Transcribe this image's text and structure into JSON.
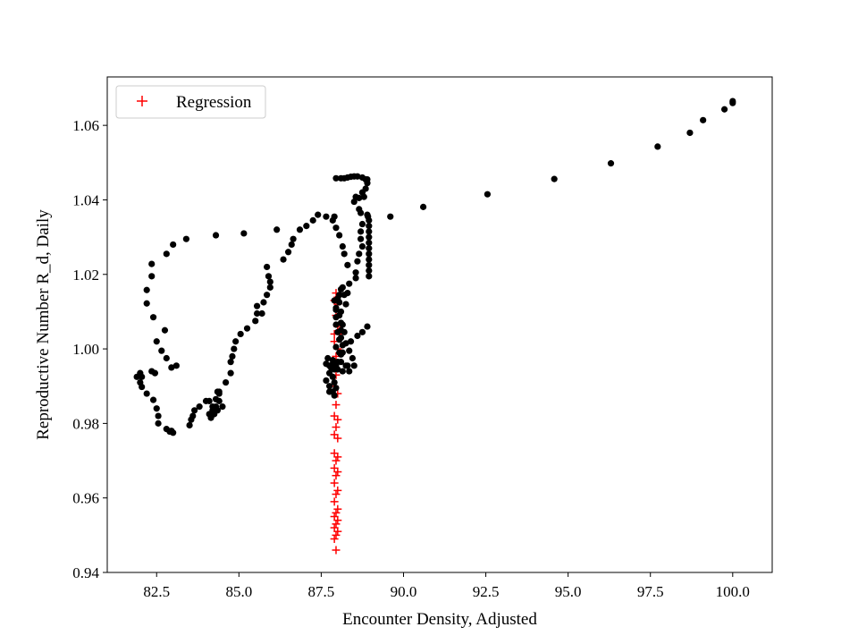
{
  "chart_data": {
    "type": "scatter",
    "title": "",
    "xlabel": "Encounter Density, Adjusted",
    "ylabel": "Reproductive Number R_d, Daily",
    "xlim": [
      81.0,
      101.2
    ],
    "ylim": [
      0.94,
      1.073
    ],
    "xticks": [
      "82.5",
      "85.0",
      "87.5",
      "90.0",
      "92.5",
      "95.0",
      "97.5",
      "100.0"
    ],
    "yticks": [
      "0.94",
      "0.96",
      "0.98",
      "1.00",
      "1.02",
      "1.04",
      "1.06"
    ],
    "grid": false,
    "legend_position": "top-left",
    "legend_entries": [
      "Regression"
    ],
    "series": [
      {
        "name": "Regression",
        "marker": "+",
        "color": "#ff0000",
        "points": [
          [
            87.95,
            1.015
          ],
          [
            87.9,
            1.013
          ],
          [
            88.0,
            1.012
          ],
          [
            87.95,
            1.009
          ],
          [
            88.0,
            1.006
          ],
          [
            87.9,
            1.004
          ],
          [
            88.05,
            1.004
          ],
          [
            87.9,
            1.002
          ],
          [
            88.0,
            1.0
          ],
          [
            87.95,
            0.998
          ],
          [
            88.0,
            0.996
          ],
          [
            87.95,
            0.993
          ],
          [
            87.9,
            0.99
          ],
          [
            88.0,
            0.988
          ],
          [
            87.95,
            0.985
          ],
          [
            87.9,
            0.982
          ],
          [
            88.0,
            0.981
          ],
          [
            87.95,
            0.979
          ],
          [
            87.9,
            0.977
          ],
          [
            88.0,
            0.976
          ],
          [
            87.9,
            0.972
          ],
          [
            88.0,
            0.971
          ],
          [
            87.95,
            0.97
          ],
          [
            87.9,
            0.968
          ],
          [
            88.0,
            0.967
          ],
          [
            87.95,
            0.966
          ],
          [
            87.9,
            0.964
          ],
          [
            88.0,
            0.962
          ],
          [
            87.95,
            0.961
          ],
          [
            87.9,
            0.959
          ],
          [
            88.0,
            0.957
          ],
          [
            87.95,
            0.956
          ],
          [
            87.9,
            0.955
          ],
          [
            88.0,
            0.954
          ],
          [
            87.95,
            0.953
          ],
          [
            87.9,
            0.952
          ],
          [
            88.0,
            0.951
          ],
          [
            87.95,
            0.95
          ],
          [
            87.9,
            0.949
          ],
          [
            87.95,
            0.946
          ]
        ]
      },
      {
        "marker": "o",
        "color": "#000000",
        "points": [
          [
            100.0,
            1.0665
          ],
          [
            100.0,
            1.066
          ],
          [
            99.75,
            1.0643
          ],
          [
            99.1,
            1.0614
          ],
          [
            98.7,
            1.058
          ],
          [
            97.72,
            1.0543
          ],
          [
            96.3,
            1.0498
          ],
          [
            94.58,
            1.0456
          ],
          [
            92.55,
            1.0415
          ],
          [
            90.6,
            1.0381
          ],
          [
            89.6,
            1.0355
          ],
          [
            88.92,
            1.0355
          ],
          [
            88.95,
            1.0345
          ],
          [
            88.95,
            1.033
          ],
          [
            88.95,
            1.0315
          ],
          [
            88.95,
            1.03
          ],
          [
            88.95,
            1.0285
          ],
          [
            88.95,
            1.027
          ],
          [
            88.95,
            1.0255
          ],
          [
            88.95,
            1.024
          ],
          [
            88.95,
            1.0225
          ],
          [
            88.95,
            1.021
          ],
          [
            88.95,
            1.0195
          ],
          [
            88.9,
            1.0455
          ],
          [
            88.9,
            1.0445
          ],
          [
            88.85,
            1.0455
          ],
          [
            88.75,
            1.046
          ],
          [
            88.6,
            1.0463
          ],
          [
            88.5,
            1.0463
          ],
          [
            88.4,
            1.0462
          ],
          [
            88.3,
            1.046
          ],
          [
            88.2,
            1.0458
          ],
          [
            88.1,
            1.0458
          ],
          [
            87.95,
            1.0458
          ],
          [
            88.85,
            1.043
          ],
          [
            88.75,
            1.042
          ],
          [
            88.8,
            1.0408
          ],
          [
            88.65,
            1.0405
          ],
          [
            88.55,
            1.0408
          ],
          [
            88.5,
            1.0395
          ],
          [
            88.65,
            1.0375
          ],
          [
            88.7,
            1.0365
          ],
          [
            88.9,
            1.036
          ],
          [
            88.75,
            1.0335
          ],
          [
            88.7,
            1.0315
          ],
          [
            88.7,
            1.0295
          ],
          [
            88.75,
            1.0275
          ],
          [
            88.65,
            1.0255
          ],
          [
            88.6,
            1.0235
          ],
          [
            88.55,
            1.0205
          ],
          [
            88.55,
            1.019
          ],
          [
            88.35,
            1.0175
          ],
          [
            88.3,
            1.015
          ],
          [
            88.2,
            1.0145
          ],
          [
            88.15,
            1.0165
          ],
          [
            88.1,
            1.016
          ],
          [
            88.05,
            1.0125
          ],
          [
            88.25,
            1.012
          ],
          [
            88.1,
            1.01
          ],
          [
            88.1,
            1.007
          ],
          [
            88.1,
            1.005
          ],
          [
            88.2,
            1.0045
          ],
          [
            88.1,
            1.003
          ],
          [
            88.15,
            1.001
          ],
          [
            88.15,
            0.999
          ],
          [
            88.35,
            0.9995
          ],
          [
            88.4,
            1.002
          ],
          [
            88.75,
            1.0045
          ],
          [
            88.9,
            1.006
          ],
          [
            88.6,
            1.0035
          ],
          [
            88.3,
            0.9955
          ],
          [
            88.35,
            0.994
          ],
          [
            88.25,
            0.9955
          ],
          [
            88.1,
            0.9965
          ],
          [
            88.1,
            0.9985
          ],
          [
            88.0,
            0.9965
          ],
          [
            87.95,
            0.9955
          ],
          [
            87.85,
            0.997
          ],
          [
            87.7,
            0.9975
          ],
          [
            87.65,
            0.996
          ],
          [
            87.75,
            0.9955
          ],
          [
            87.85,
            0.996
          ],
          [
            87.9,
            0.9945
          ],
          [
            87.75,
            0.9935
          ],
          [
            87.85,
            0.9925
          ],
          [
            87.65,
            0.9915
          ],
          [
            87.75,
            0.99
          ],
          [
            87.75,
            0.9885
          ],
          [
            87.85,
            0.9885
          ],
          [
            87.9,
            0.9875
          ],
          [
            87.95,
            0.9895
          ],
          [
            87.9,
            0.991
          ],
          [
            87.95,
            1.0005
          ],
          [
            88.05,
            1.0025
          ],
          [
            88.0,
            1.0045
          ],
          [
            87.95,
            1.0065
          ],
          [
            87.95,
            1.0085
          ],
          [
            87.95,
            1.011
          ],
          [
            87.9,
            1.013
          ],
          [
            88.0,
            1.0135
          ],
          [
            88.05,
            1.0145
          ],
          [
            87.8,
            0.995
          ],
          [
            88.0,
            0.9945
          ],
          [
            88.15,
            0.994
          ],
          [
            88.5,
            0.9955
          ],
          [
            88.45,
            0.9975
          ],
          [
            88.05,
            0.999
          ],
          [
            88.25,
            1.0015
          ],
          [
            88.15,
            1.0065
          ],
          [
            88.05,
            1.009
          ],
          [
            87.95,
            1.0105
          ],
          [
            88.3,
            1.0225
          ],
          [
            88.2,
            1.0255
          ],
          [
            88.15,
            1.0275
          ],
          [
            88.05,
            1.0305
          ],
          [
            87.95,
            1.0325
          ],
          [
            87.85,
            1.0345
          ],
          [
            87.65,
            1.0355
          ],
          [
            87.9,
            1.0355
          ],
          [
            87.4,
            1.036
          ],
          [
            87.25,
            1.0345
          ],
          [
            87.05,
            1.033
          ],
          [
            86.85,
            1.032
          ],
          [
            86.65,
            1.0295
          ],
          [
            86.6,
            1.028
          ],
          [
            86.5,
            1.026
          ],
          [
            86.35,
            1.024
          ],
          [
            86.15,
            1.032
          ],
          [
            85.15,
            1.031
          ],
          [
            84.3,
            1.0305
          ],
          [
            83.4,
            1.0295
          ],
          [
            83.0,
            1.028
          ],
          [
            82.8,
            1.0255
          ],
          [
            82.35,
            1.0228
          ],
          [
            82.35,
            1.0195
          ],
          [
            82.2,
            1.0158
          ],
          [
            82.2,
            1.0122
          ],
          [
            82.4,
            1.0085
          ],
          [
            82.5,
            1.002
          ],
          [
            82.65,
            0.9995
          ],
          [
            82.8,
            0.9975
          ],
          [
            82.95,
            0.995
          ],
          [
            83.1,
            0.9955
          ],
          [
            82.75,
            1.005
          ],
          [
            82.35,
            0.994
          ],
          [
            82.45,
            0.9935
          ],
          [
            82.4,
            0.9863
          ],
          [
            82.5,
            0.984
          ],
          [
            82.55,
            0.982
          ],
          [
            82.55,
            0.98
          ],
          [
            82.8,
            0.9785
          ],
          [
            82.9,
            0.9778
          ],
          [
            83.0,
            0.9775
          ],
          [
            82.95,
            0.978
          ],
          [
            82.05,
            0.9925
          ],
          [
            82.0,
            0.9935
          ],
          [
            81.9,
            0.9925
          ],
          [
            82.0,
            0.991
          ],
          [
            82.05,
            0.9898
          ],
          [
            82.2,
            0.988
          ],
          [
            83.5,
            0.9795
          ],
          [
            83.55,
            0.981
          ],
          [
            83.6,
            0.982
          ],
          [
            83.65,
            0.9835
          ],
          [
            83.8,
            0.9845
          ],
          [
            84.0,
            0.986
          ],
          [
            84.1,
            0.986
          ],
          [
            84.2,
            0.9845
          ],
          [
            84.3,
            0.9845
          ],
          [
            84.4,
            0.986
          ],
          [
            84.2,
            0.9835
          ],
          [
            84.1,
            0.9825
          ],
          [
            84.25,
            0.9825
          ],
          [
            84.15,
            0.9815
          ],
          [
            84.35,
            0.9835
          ],
          [
            84.4,
            0.988
          ],
          [
            84.3,
            0.9865
          ],
          [
            84.35,
            0.9885
          ],
          [
            84.4,
            0.9885
          ],
          [
            84.5,
            0.9845
          ],
          [
            84.6,
            0.991
          ],
          [
            84.75,
            0.9935
          ],
          [
            84.75,
            0.9965
          ],
          [
            84.8,
            0.998
          ],
          [
            84.85,
            1.0
          ],
          [
            84.9,
            1.002
          ],
          [
            85.05,
            1.004
          ],
          [
            85.25,
            1.0055
          ],
          [
            85.5,
            1.0075
          ],
          [
            85.55,
            1.0095
          ],
          [
            85.7,
            1.0095
          ],
          [
            85.75,
            1.0125
          ],
          [
            85.55,
            1.0115
          ],
          [
            85.85,
            1.0145
          ],
          [
            85.95,
            1.0165
          ],
          [
            85.95,
            1.018
          ],
          [
            85.9,
            1.0195
          ],
          [
            85.85,
            1.022
          ]
        ]
      }
    ]
  }
}
